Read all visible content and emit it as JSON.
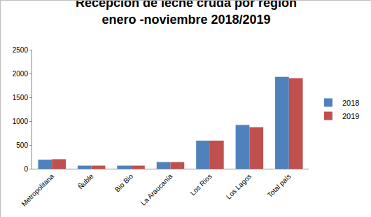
{
  "chart_data": {
    "type": "bar",
    "title": [
      "Recepción de leche cruda por región",
      "enero -noviembre 2018/2019"
    ],
    "categories": [
      "Metropolitana",
      "Ñuble",
      "Bio Bio",
      "La Araucanía",
      "Los Rios",
      "Los Lagos",
      "Total país"
    ],
    "series": [
      {
        "name": "2018",
        "color": "#4f81bd",
        "values": [
          190,
          65,
          65,
          140,
          590,
          920,
          1930
        ]
      },
      {
        "name": "2019",
        "color": "#c0504d",
        "values": [
          200,
          65,
          65,
          140,
          590,
          870,
          1900
        ]
      }
    ],
    "ylim": [
      0,
      2500
    ],
    "yticks": [
      0,
      500,
      1000,
      1500,
      2000,
      2500
    ],
    "grid": false,
    "legend": "right"
  }
}
